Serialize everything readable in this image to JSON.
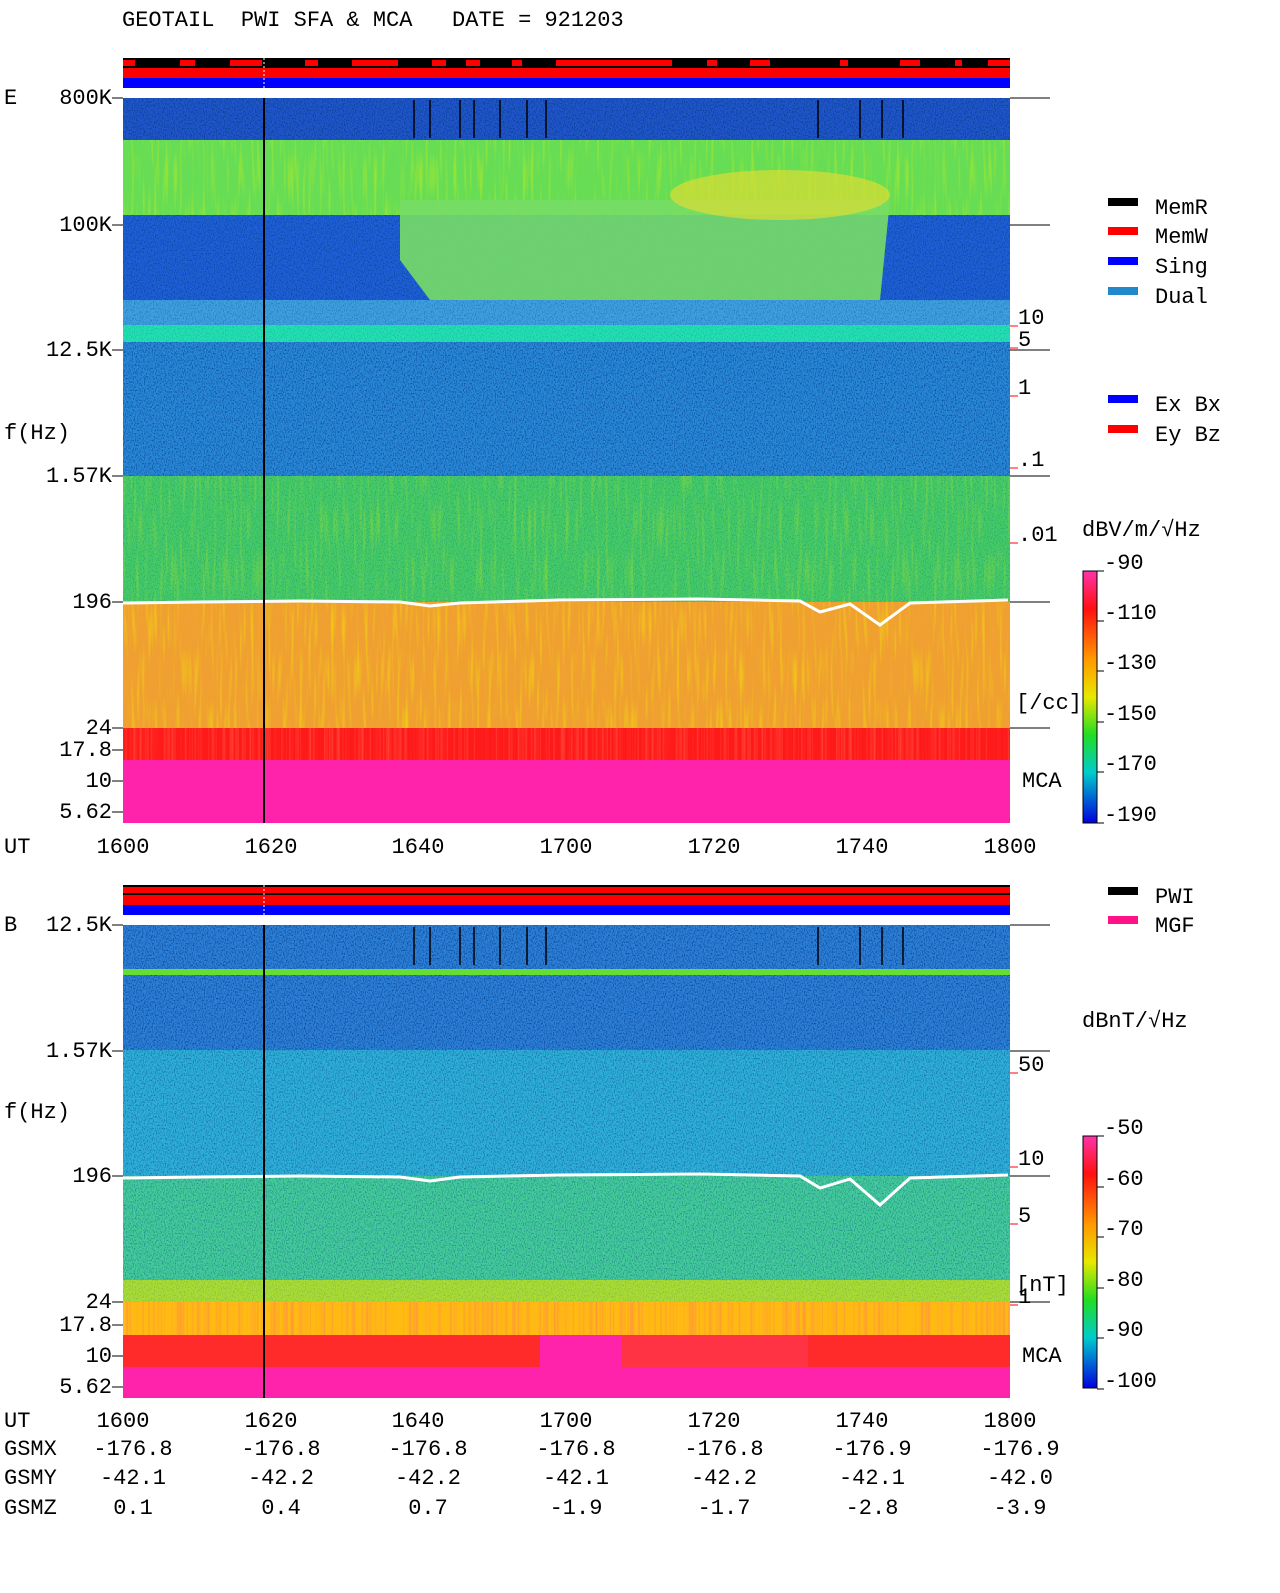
{
  "header": {
    "title": "GEOTAIL  PWI SFA & MCA   DATE = 921203"
  },
  "panels": [
    {
      "label": "E",
      "ylabel": "f(Hz)",
      "yticks": [
        "800K",
        "100K",
        "12.5K",
        "1.57K",
        "196",
        "24",
        "17.8",
        "10",
        "5.62"
      ],
      "xlabel": "UT",
      "xticks": [
        "1600",
        "1620",
        "1640",
        "1700",
        "1720",
        "1740",
        "1800"
      ],
      "side_ticks": [
        "10",
        "5",
        "1",
        ".1",
        ".01"
      ],
      "side_unit": "[/cc]",
      "mca": "MCA",
      "unit": "dBV/m/√Hz",
      "colorbar_ticks": [
        "-90",
        "-110",
        "-130",
        "-150",
        "-170",
        "-190"
      ]
    },
    {
      "label": "B",
      "ylabel": "f(Hz)",
      "yticks": [
        "12.5K",
        "1.57K",
        "196",
        "24",
        "17.8",
        "10",
        "5.62"
      ],
      "xlabel": "UT",
      "xticks": [
        "1600",
        "1620",
        "1640",
        "1700",
        "1720",
        "1740",
        "1800"
      ],
      "side_ticks": [
        "50",
        "10",
        "5",
        "1"
      ],
      "side_unit": "[nT]",
      "mca": "MCA",
      "unit": "dBnT/√Hz",
      "colorbar_ticks": [
        "-50",
        "-60",
        "-70",
        "-80",
        "-90",
        "-100"
      ]
    }
  ],
  "legend": {
    "memory": [
      "MemR",
      "MemW",
      "Sing",
      "Dual"
    ],
    "mode": [
      "Ex Bx",
      "Ey Bz"
    ],
    "source": [
      "PWI",
      "MGF"
    ]
  },
  "orbit": [
    {
      "label": "GSMX",
      "values": [
        "-176.8",
        "-176.8",
        "-176.8",
        "-176.8",
        "-176.8",
        "-176.9",
        "-176.9"
      ]
    },
    {
      "label": "GSMY",
      "values": [
        "-42.1",
        "-42.2",
        "-42.2",
        "-42.1",
        "-42.2",
        "-42.1",
        "-42.0"
      ]
    },
    {
      "label": "GSMZ",
      "values": [
        "0.1",
        "0.4",
        "0.7",
        "-1.9",
        "-1.7",
        "-2.8",
        "-3.9"
      ]
    }
  ]
}
